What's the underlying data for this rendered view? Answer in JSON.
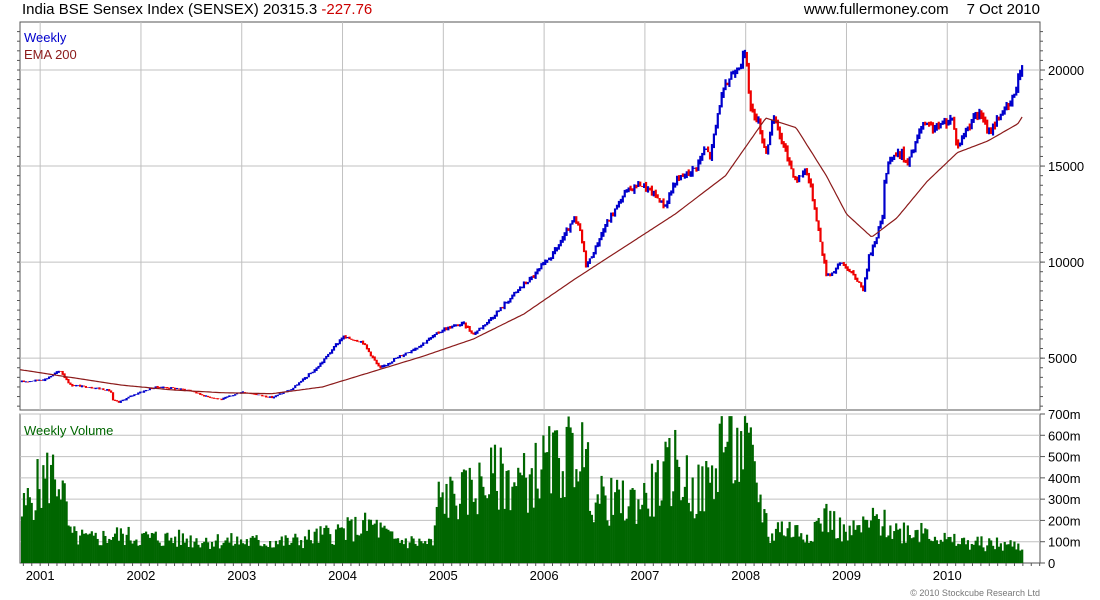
{
  "header": {
    "index_name": "India BSE Sensex Index (SENSEX)",
    "last_value": "20315.3",
    "change": "-227.76",
    "website": "www.fullermoney.com",
    "date": "7 Oct 2010"
  },
  "footer": {
    "copyright": "© 2010 Stockcube Research Ltd"
  },
  "colors": {
    "up": "#0000cc",
    "down": "#ee0000",
    "ema": "#8b1a1a",
    "volume": "#006600",
    "grid": "#c0c0c0",
    "frame": "#555555"
  },
  "chart_data": [
    {
      "type": "line",
      "title": "",
      "ylim": [
        2300,
        22500
      ],
      "yticks": [
        5000,
        10000,
        15000,
        20000
      ],
      "grid": true,
      "legend": [
        "Weekly",
        "EMA 200"
      ],
      "legend_placement": "top-left",
      "series": [
        {
          "name": "Weekly",
          "x": [
            2000.8,
            2001.05,
            2001.2,
            2001.3,
            2001.55,
            2001.7,
            2001.72,
            2001.78,
            2001.95,
            2002.15,
            2002.3,
            2002.5,
            2002.65,
            2002.8,
            2003.0,
            2003.3,
            2003.5,
            2003.75,
            2004.0,
            2004.2,
            2004.37,
            2004.5,
            2004.75,
            2005.0,
            2005.2,
            2005.3,
            2005.5,
            2005.75,
            2005.9,
            2006.1,
            2006.3,
            2006.35,
            2006.42,
            2006.48,
            2006.6,
            2006.8,
            2006.95,
            2007.1,
            2007.2,
            2007.3,
            2007.5,
            2007.6,
            2007.65,
            2007.75,
            2007.85,
            2008.0,
            2008.05,
            2008.12,
            2008.2,
            2008.28,
            2008.38,
            2008.5,
            2008.6,
            2008.68,
            2008.76,
            2008.8,
            2008.85,
            2008.95,
            2009.1,
            2009.17,
            2009.22,
            2009.3,
            2009.36,
            2009.38,
            2009.42,
            2009.55,
            2009.6,
            2009.75,
            2009.9,
            2010.05,
            2010.1,
            2010.25,
            2010.35,
            2010.4,
            2010.55,
            2010.6,
            2010.65,
            2010.7,
            2010.72,
            2010.76
          ],
          "values": [
            3750,
            3900,
            4350,
            3600,
            3450,
            3300,
            2800,
            2700,
            3150,
            3500,
            3450,
            3300,
            3000,
            2850,
            3250,
            2950,
            3400,
            4500,
            6100,
            5850,
            4450,
            4900,
            5600,
            6500,
            6800,
            6250,
            7200,
            8600,
            9300,
            10500,
            12200,
            11800,
            9800,
            10400,
            11800,
            13600,
            14100,
            13500,
            12900,
            14200,
            14900,
            15900,
            15500,
            18500,
            19700,
            20800,
            18000,
            17400,
            15700,
            17500,
            16000,
            14200,
            14900,
            13000,
            10500,
            9400,
            9400,
            10000,
            9100,
            8600,
            10200,
            11400,
            12400,
            14300,
            15400,
            15700,
            15000,
            17100,
            17000,
            17500,
            16000,
            17500,
            17700,
            16600,
            17900,
            18000,
            18500,
            19500,
            19900,
            20300
          ]
        },
        {
          "name": "EMA 200",
          "x": [
            2000.8,
            2001.3,
            2001.8,
            2002.3,
            2002.8,
            2003.3,
            2003.8,
            2004.3,
            2004.8,
            2005.3,
            2005.8,
            2006.3,
            2006.8,
            2007.3,
            2007.8,
            2008.0,
            2008.2,
            2008.5,
            2008.8,
            2009.0,
            2009.25,
            2009.5,
            2009.8,
            2010.1,
            2010.4,
            2010.7,
            2010.76
          ],
          "values": [
            4400,
            4000,
            3600,
            3350,
            3200,
            3150,
            3500,
            4300,
            5100,
            6000,
            7300,
            9100,
            10800,
            12500,
            14500,
            16000,
            17500,
            17000,
            14500,
            12500,
            11300,
            12300,
            14200,
            15700,
            16300,
            17200,
            17700
          ]
        }
      ]
    },
    {
      "type": "bar",
      "title": "",
      "ylim": [
        0,
        700
      ],
      "yticks": [
        0,
        100,
        200,
        300,
        400,
        500,
        600,
        700
      ],
      "ytick_labels": [
        "0",
        "100m",
        "200m",
        "300m",
        "400m",
        "500m",
        "600m",
        "700m"
      ],
      "xticks": [
        "2001",
        "2002",
        "2003",
        "2004",
        "2005",
        "2006",
        "2007",
        "2008",
        "2009",
        "2010"
      ],
      "grid": true,
      "legend": [
        "Weekly Volume"
      ],
      "legend_placement": "top-left",
      "series": [
        {
          "name": "Weekly Volume",
          "x": [
            2000.8,
            2000.95,
            2001.1,
            2001.2,
            2001.3,
            2001.5,
            2001.75,
            2002.0,
            2002.5,
            2003.0,
            2003.5,
            2004.0,
            2004.3,
            2004.5,
            2004.9,
            2004.95,
            2005.2,
            2005.5,
            2005.8,
            2006.0,
            2006.3,
            2006.35,
            2006.5,
            2006.8,
            2007.0,
            2007.3,
            2007.5,
            2007.7,
            2007.75,
            2007.9,
            2008.0,
            2008.25,
            2008.3,
            2008.6,
            2008.8,
            2009.0,
            2009.3,
            2009.5,
            2009.8,
            2010.0,
            2010.4,
            2010.76
          ],
          "values": [
            220,
            340,
            420,
            400,
            130,
            110,
            130,
            120,
            110,
            100,
            100,
            150,
            180,
            110,
            90,
            300,
            320,
            400,
            380,
            450,
            520,
            560,
            300,
            280,
            300,
            460,
            320,
            400,
            640,
            500,
            560,
            110,
            170,
            140,
            220,
            130,
            200,
            150,
            160,
            100,
            90,
            80
          ]
        }
      ]
    }
  ]
}
